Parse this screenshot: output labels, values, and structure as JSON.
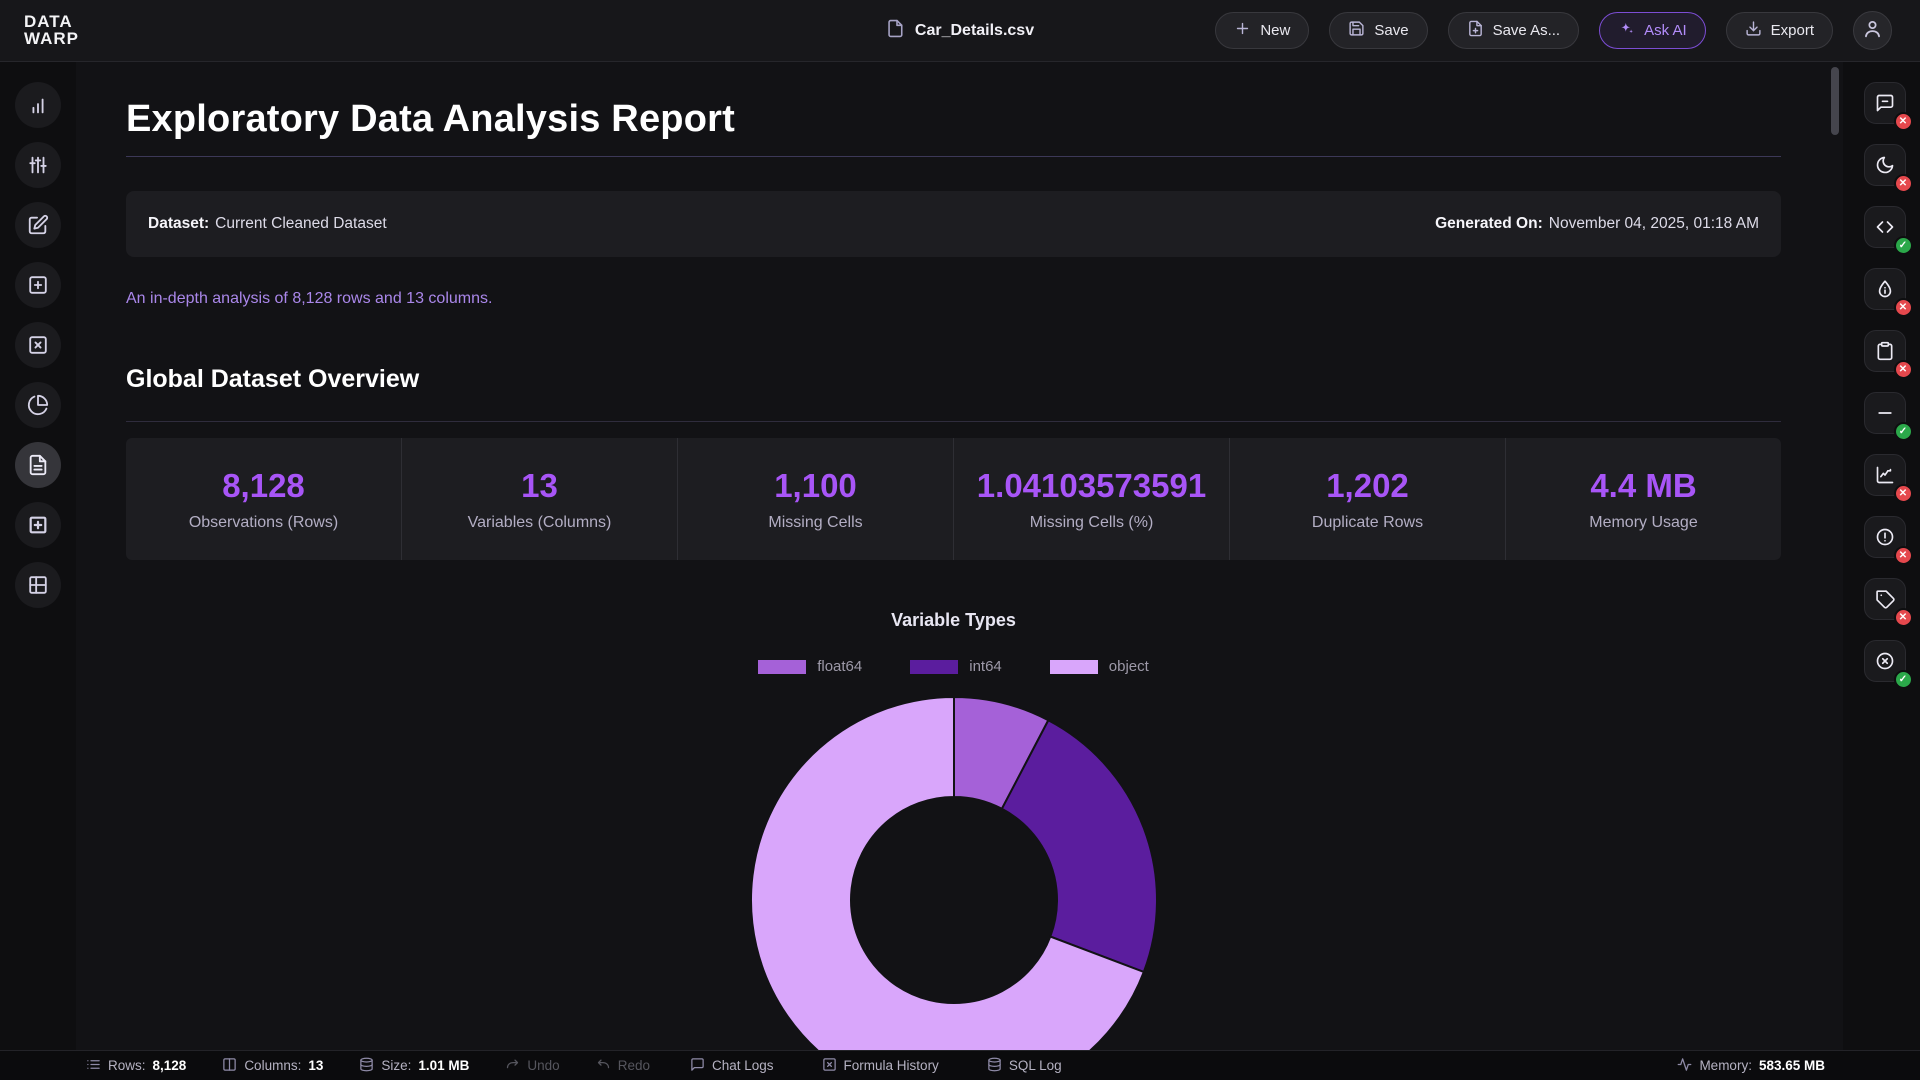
{
  "app": {
    "logo_line1": "DATA",
    "logo_line2": "WARP"
  },
  "topbar": {
    "filename": "Car_Details.csv",
    "new_label": "New",
    "save_label": "Save",
    "save_as_label": "Save As...",
    "ask_ai_label": "Ask AI",
    "export_label": "Export"
  },
  "left_sidebar": {
    "items": [
      {
        "icon": "bar-chart-icon",
        "active": false
      },
      {
        "icon": "sliders-icon",
        "active": false
      },
      {
        "icon": "edit-square-icon",
        "active": false
      },
      {
        "icon": "plus-square-icon",
        "active": false
      },
      {
        "icon": "x-square-icon",
        "active": false
      },
      {
        "icon": "pie-chart-icon",
        "active": false
      },
      {
        "icon": "file-report-icon",
        "active": true
      },
      {
        "icon": "insert-square-icon",
        "active": false
      },
      {
        "icon": "grid-table-icon",
        "active": false
      }
    ]
  },
  "right_sidebar": {
    "items": [
      {
        "icon": "message-square-minus-icon",
        "status": "error"
      },
      {
        "icon": "moon-icon",
        "status": "error"
      },
      {
        "icon": "code-icon",
        "status": "ok"
      },
      {
        "icon": "droplet-info-icon",
        "status": "error"
      },
      {
        "icon": "clipboard-icon",
        "status": "error"
      },
      {
        "icon": "minus-icon",
        "status": "ok"
      },
      {
        "icon": "line-chart-icon",
        "status": "error"
      },
      {
        "icon": "alert-circle-icon",
        "status": "error"
      },
      {
        "icon": "tag-icon",
        "status": "error"
      },
      {
        "icon": "x-circle-icon",
        "status": "ok"
      }
    ],
    "status_colors": {
      "error": "#e5484d",
      "ok": "#2ba84a"
    }
  },
  "report": {
    "title": "Exploratory Data Analysis Report",
    "dataset_label": "Dataset:",
    "dataset_value": "Current Cleaned Dataset",
    "generated_label": "Generated On:",
    "generated_value": "November 04, 2025, 01:18 AM",
    "summary": "An in-depth analysis of 8,128 rows and 13 columns.",
    "overview_title": "Global Dataset Overview",
    "stats": [
      {
        "value": "8,128",
        "label": "Observations (Rows)"
      },
      {
        "value": "13",
        "label": "Variables (Columns)"
      },
      {
        "value": "1,100",
        "label": "Missing Cells"
      },
      {
        "value": "1.04103573591",
        "label": "Missing Cells (%)"
      },
      {
        "value": "1,202",
        "label": "Duplicate Rows"
      },
      {
        "value": "4.4 MB",
        "label": "Memory Usage"
      }
    ]
  },
  "chart_data": {
    "type": "pie",
    "variant": "donut",
    "title": "Variable Types",
    "categories": [
      "float64",
      "int64",
      "object"
    ],
    "values": [
      1,
      3,
      9
    ],
    "total_columns": 13,
    "colors": [
      "#a561d8",
      "#5b1d9e",
      "#d9a6fb"
    ],
    "legend_position": "top",
    "background": "#121215"
  },
  "statusbar": {
    "rows_label": "Rows:",
    "rows_value": "8,128",
    "columns_label": "Columns:",
    "columns_value": "13",
    "size_label": "Size:",
    "size_value": "1.01 MB",
    "undo_label": "Undo",
    "redo_label": "Redo",
    "chat_logs_label": "Chat Logs",
    "formula_history_label": "Formula History",
    "sql_log_label": "SQL Log",
    "memory_label": "Memory:",
    "memory_value": "583.65 MB"
  }
}
